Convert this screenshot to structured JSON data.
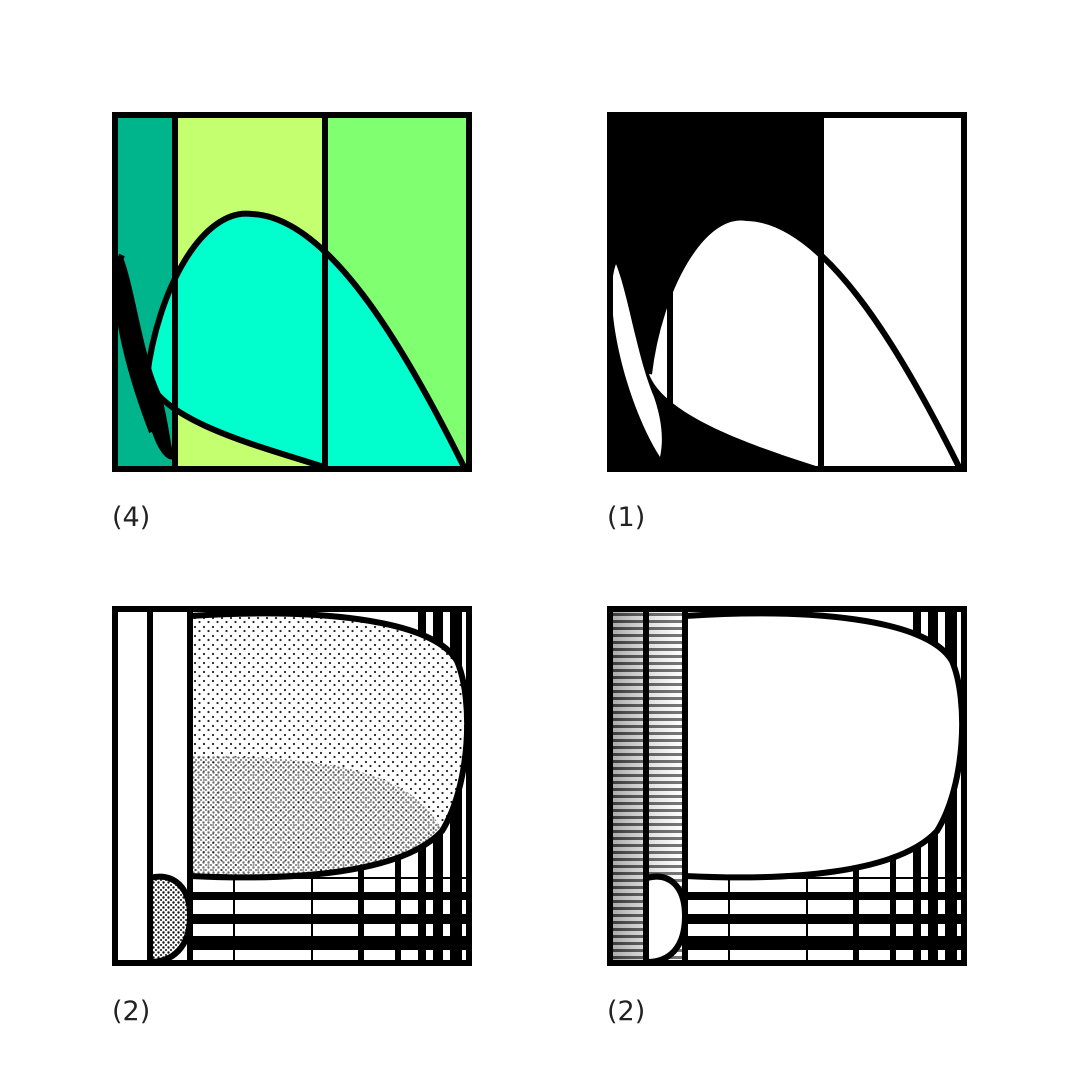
{
  "panels": [
    {
      "label": "(4)",
      "colors": [
        "#00b48c",
        "#c4ff70",
        "#80ff70",
        "#00ffcc",
        "#000000"
      ]
    },
    {
      "label": "(1)",
      "colors": [
        "#000000",
        "#ffffff"
      ]
    },
    {
      "label": "(2)",
      "colors": [
        "#000000",
        "#ffffff"
      ]
    },
    {
      "label": "(2)",
      "colors": [
        "#000000",
        "#ffffff"
      ]
    }
  ]
}
